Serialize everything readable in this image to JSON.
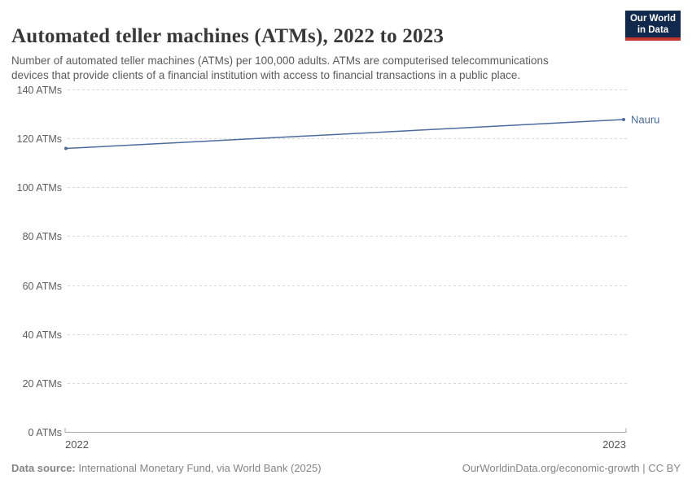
{
  "header": {
    "title": "Automated teller machines (ATMs), 2022 to 2023",
    "subtitle": "Number of automated teller machines (ATMs) per 100,000 adults. ATMs are computerised telecommunications\ndevices that provide clients of a financial institution with access to financial transactions in a public place.",
    "logo": {
      "line1": "Our World",
      "line2": "in Data"
    }
  },
  "chart_data": {
    "type": "line",
    "title": "Automated teller machines (ATMs), 2022 to 2023",
    "x": [
      2022,
      2023
    ],
    "xtick_labels": [
      "2022",
      "2023"
    ],
    "series": [
      {
        "name": "Nauru",
        "values": [
          115.9,
          127.7
        ],
        "color": "#4c6a9c"
      }
    ],
    "ylim": [
      0,
      140
    ],
    "ytick_interval": 20,
    "ytick_suffix": " ATMs",
    "xlabel": "",
    "ylabel": "",
    "grid": "horizontal-dashed",
    "legend_position": "end-of-line-label"
  },
  "footer": {
    "source_label": "Data source:",
    "source_text": " International Monetary Fund, via World Bank (2025)",
    "credit": "OurWorldinData.org/economic-growth | CC BY"
  },
  "colors": {
    "line": "#4c6a9c",
    "logo_bg": "#12294e",
    "logo_accent": "#c1372f",
    "grid": "#d9d9d9",
    "axis": "#a3a3a3",
    "tick_text": "#5e5e5e",
    "title_text": "#383838",
    "subtitle_text": "#5b5b5b",
    "footer_text": "#858585"
  }
}
